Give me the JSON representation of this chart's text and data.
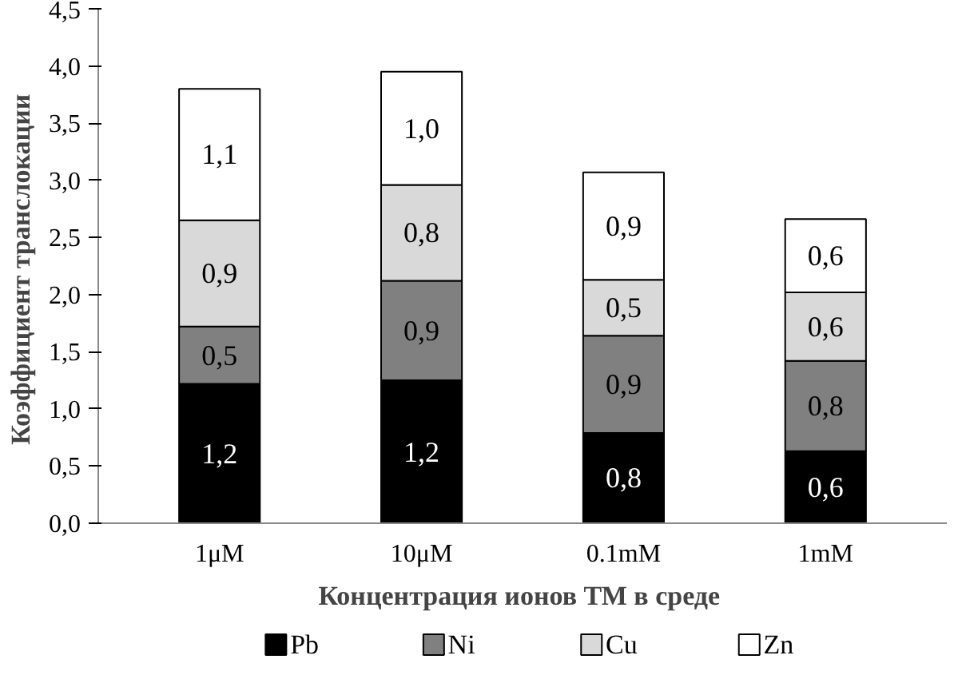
{
  "chart_data": {
    "type": "bar",
    "stacked": true,
    "xlabel": "Концентрация  ионов ТМ в среде",
    "ylabel": "Коэффициент  транслокации",
    "categories": [
      "1μM",
      "10μM",
      "0.1mM",
      "1mM"
    ],
    "series": [
      {
        "name": "Pb",
        "color": "#000000",
        "values": [
          1.22,
          1.25,
          0.79,
          0.63
        ],
        "value_labels": [
          "1,2",
          "1,2",
          "0,8",
          "0,6"
        ]
      },
      {
        "name": "Ni",
        "color": "#808080",
        "values": [
          0.5,
          0.87,
          0.85,
          0.79
        ],
        "value_labels": [
          "0,5",
          "0,9",
          "0,9",
          "0,8"
        ]
      },
      {
        "name": "Cu",
        "color": "#d9d9d9",
        "values": [
          0.93,
          0.84,
          0.49,
          0.6
        ],
        "value_labels": [
          "0,9",
          "0,8",
          "0,5",
          "0,6"
        ]
      },
      {
        "name": "Zn",
        "color": "#ffffff",
        "values": [
          1.15,
          0.99,
          0.94,
          0.64
        ],
        "value_labels": [
          "1,1",
          "1,0",
          "0,9",
          "0,6"
        ]
      }
    ],
    "ylim": [
      0,
      4.5
    ],
    "yticks": [
      {
        "value": 0,
        "label": "0,0"
      },
      {
        "value": 0.5,
        "label": "0,5"
      },
      {
        "value": 1,
        "label": "1,0"
      },
      {
        "value": 1.5,
        "label": "1,5"
      },
      {
        "value": 2,
        "label": "2,0"
      },
      {
        "value": 2.5,
        "label": "2,5"
      },
      {
        "value": 3,
        "label": "3,0"
      },
      {
        "value": 3.5,
        "label": "3,5"
      },
      {
        "value": 4,
        "label": "4,0"
      },
      {
        "value": 4.5,
        "label": "4,5"
      }
    ],
    "grid": false,
    "legend": "bottom"
  }
}
